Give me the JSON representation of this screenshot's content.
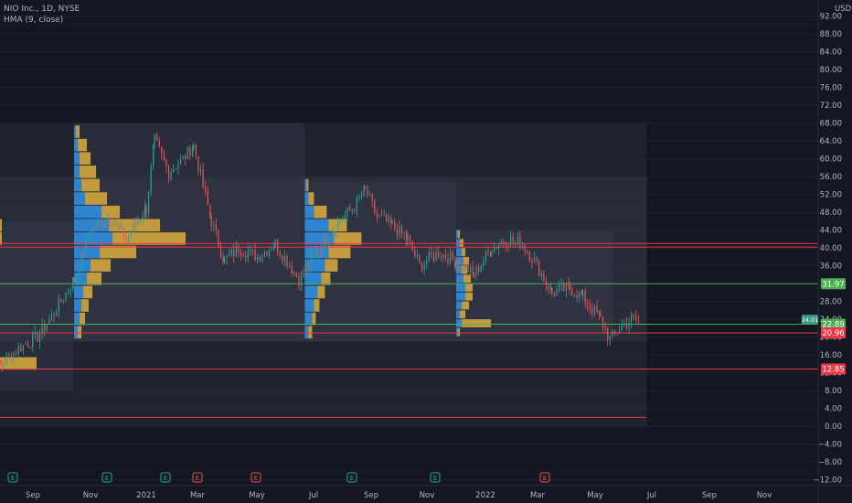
{
  "legend": {
    "symbol": "NIO Inc., 1D, NYSE",
    "indicator": "HMA (9, close)"
  },
  "colors": {
    "background": "#131722",
    "grid": "#1f2330",
    "up": "#26a69a",
    "down": "#ef5350",
    "vp_blue": "#2e8de0",
    "vp_gold": "#d4a63c",
    "vp_blue_dim": "#3b6e99",
    "vp_gold_dim": "#8c7434",
    "red_line": "#f23645",
    "green_line": "#4caf50",
    "area": "#2a2e39"
  },
  "chart_data": {
    "type": "candlestick",
    "title": "NIO Inc., 1D, NYSE",
    "indicator": "HMA (9, close)",
    "currency": "USD",
    "ylim": [
      -12,
      96
    ],
    "y_ticks": [
      92,
      88,
      84,
      80,
      76,
      72,
      68,
      64,
      60,
      56,
      52,
      48,
      44,
      40,
      36,
      32,
      28,
      24,
      20,
      16,
      12,
      8,
      4,
      0,
      -4,
      -8,
      -12
    ],
    "x_ticks": [
      "Sep",
      "Nov",
      "2021",
      "Mar",
      "May",
      "Jul",
      "Sep",
      "Nov",
      "2022",
      "Mar",
      "May",
      "Jul",
      "Sep",
      "Nov"
    ],
    "price_path": [
      [
        "2020-08-15",
        12.5
      ],
      [
        "2020-09-01",
        14.0
      ],
      [
        "2020-09-15",
        17.5
      ],
      [
        "2020-10-01",
        20.0
      ],
      [
        "2020-10-15",
        25.5
      ],
      [
        "2020-11-01",
        33.0
      ],
      [
        "2020-11-15",
        44.0
      ],
      [
        "2020-12-01",
        47.0
      ],
      [
        "2020-12-15",
        42.0
      ],
      [
        "2021-01-01",
        49.0
      ],
      [
        "2021-01-08",
        64.0
      ],
      [
        "2021-01-20",
        57.0
      ],
      [
        "2021-02-01",
        60.0
      ],
      [
        "2021-02-10",
        63.0
      ],
      [
        "2021-02-25",
        46.0
      ],
      [
        "2021-03-08",
        37.0
      ],
      [
        "2021-03-20",
        40.0
      ],
      [
        "2021-04-05",
        38.0
      ],
      [
        "2021-04-20",
        41.0
      ],
      [
        "2021-05-10",
        33.0
      ],
      [
        "2021-05-25",
        39.0
      ],
      [
        "2021-06-10",
        45.0
      ],
      [
        "2021-06-28",
        50.0
      ],
      [
        "2021-07-05",
        53.0
      ],
      [
        "2021-07-15",
        47.0
      ],
      [
        "2021-07-28",
        45.0
      ],
      [
        "2021-08-10",
        42.0
      ],
      [
        "2021-08-20",
        36.0
      ],
      [
        "2021-09-05",
        39.0
      ],
      [
        "2021-09-20",
        37.0
      ],
      [
        "2021-10-05",
        34.0
      ],
      [
        "2021-10-20",
        40.0
      ],
      [
        "2021-11-01",
        42.0
      ],
      [
        "2021-11-15",
        41.0
      ],
      [
        "2021-11-25",
        37.0
      ],
      [
        "2021-12-10",
        30.0
      ],
      [
        "2021-12-25",
        31.0
      ],
      [
        "2022-01-05",
        29.0
      ],
      [
        "2022-01-20",
        24.0
      ],
      [
        "2022-01-28",
        19.5
      ],
      [
        "2022-02-05",
        22.0
      ],
      [
        "2022-02-15",
        24.0
      ],
      [
        "2022-02-22",
        23.5
      ]
    ],
    "horizontal_levels": [
      {
        "price": 41.0,
        "color": "red"
      },
      {
        "price": 40.2,
        "color": "red"
      },
      {
        "price": 31.97,
        "color": "green",
        "label": "31.97"
      },
      {
        "price": 22.89,
        "color": "green",
        "label": "22.89"
      },
      {
        "price": 20.96,
        "color": "red",
        "label": "20.96"
      },
      {
        "price": 12.85,
        "color": "red",
        "label": "12.85"
      },
      {
        "price": 2.0,
        "color": "red"
      }
    ],
    "current_price": {
      "price": 24.0,
      "label": "24.01"
    },
    "earnings_markers": [
      {
        "date": "2020-08-20",
        "color": "green"
      },
      {
        "date": "2020-11-05",
        "color": "green"
      },
      {
        "date": "2020-12-25",
        "color": "green"
      },
      {
        "date": "2021-03-01",
        "color": "red"
      },
      {
        "date": "2021-04-30",
        "color": "red"
      },
      {
        "date": "2021-08-10",
        "color": "green"
      },
      {
        "date": "2021-11-10",
        "color": "green"
      },
      {
        "date": "2022-03-25",
        "color": "red"
      }
    ],
    "volume_profiles": [
      {
        "from": "2020-08-01",
        "to": "2020-10-31",
        "low": 8,
        "high": 46,
        "rows": [
          [
            45,
            12,
            28
          ],
          [
            42,
            6,
            34
          ],
          [
            38,
            18,
            12
          ],
          [
            34,
            8,
            20
          ],
          [
            30,
            12,
            16
          ],
          [
            26,
            10,
            14
          ],
          [
            22,
            8,
            14
          ],
          [
            18,
            6,
            10
          ],
          [
            14,
            30,
            48
          ],
          [
            10,
            2,
            2
          ]
        ]
      },
      {
        "from": "2020-11-01",
        "to": "2021-05-15",
        "low": 19,
        "high": 68,
        "rows": [
          [
            66,
            2,
            4
          ],
          [
            63,
            4,
            10
          ],
          [
            60,
            6,
            12
          ],
          [
            57,
            6,
            18
          ],
          [
            54,
            8,
            20
          ],
          [
            51,
            12,
            24
          ],
          [
            48,
            30,
            20
          ],
          [
            45,
            38,
            56
          ],
          [
            42,
            42,
            80
          ],
          [
            39,
            28,
            40
          ],
          [
            36,
            18,
            22
          ],
          [
            33,
            14,
            16
          ],
          [
            30,
            10,
            10
          ],
          [
            27,
            8,
            8
          ],
          [
            24,
            6,
            6
          ],
          [
            21,
            4,
            4
          ]
        ]
      },
      {
        "from": "2021-05-15",
        "to": "2021-09-20",
        "low": 19,
        "high": 55,
        "rows": [
          [
            54,
            2,
            2
          ],
          [
            51,
            4,
            6
          ],
          [
            48,
            10,
            14
          ],
          [
            45,
            26,
            20
          ],
          [
            42,
            32,
            30
          ],
          [
            39,
            26,
            24
          ],
          [
            36,
            22,
            14
          ],
          [
            33,
            18,
            10
          ],
          [
            30,
            14,
            8
          ],
          [
            27,
            10,
            6
          ],
          [
            24,
            8,
            4
          ],
          [
            21,
            4,
            4
          ]
        ]
      },
      {
        "from": "2021-09-20",
        "to": "2022-01-31",
        "low": 19,
        "high": 44,
        "rows": [
          [
            43,
            2,
            2
          ],
          [
            41,
            4,
            4
          ],
          [
            39,
            6,
            4
          ],
          [
            37,
            8,
            6
          ],
          [
            35,
            6,
            6
          ],
          [
            33,
            8,
            8
          ],
          [
            31,
            10,
            8
          ],
          [
            29,
            10,
            8
          ],
          [
            27,
            6,
            8
          ],
          [
            25,
            4,
            6
          ],
          [
            23,
            6,
            32
          ],
          [
            21,
            2,
            2
          ]
        ]
      }
    ],
    "shaded_region": {
      "from": "2020-08-01",
      "to": "2022-02-28",
      "low": 0,
      "high": 68
    }
  }
}
